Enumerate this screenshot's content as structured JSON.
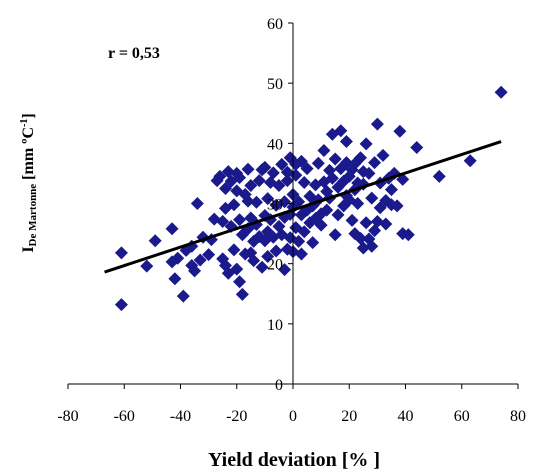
{
  "chart_data": {
    "type": "scatter",
    "title": "",
    "annotation": "r = 0,53",
    "xlabel": "Yield deviation [% ]",
    "ylabel": {
      "main": "I",
      "sub": "De Martonne",
      "unit_start": " [mm  ºC",
      "sup": "-1",
      "unit_end": "]"
    },
    "xlim": [
      -80,
      80
    ],
    "ylim": [
      0,
      60
    ],
    "x_ticks": [
      -80,
      -60,
      -40,
      -20,
      0,
      20,
      40,
      60,
      80
    ],
    "y_ticks": [
      0,
      10,
      20,
      30,
      40,
      50,
      60
    ],
    "grid": false,
    "marker": "diamond",
    "colors": {
      "points": "#1a1a8c",
      "trendline": "#000000",
      "axis": "#000000"
    },
    "trendline": {
      "x": [
        -67,
        74
      ],
      "y": [
        18.6,
        40.3
      ]
    },
    "points": [
      [
        -61,
        21.8
      ],
      [
        -61,
        13.2
      ],
      [
        -52,
        19.6
      ],
      [
        -49,
        23.8
      ],
      [
        -43,
        25.8
      ],
      [
        -43,
        20.3
      ],
      [
        -42,
        17.5
      ],
      [
        -41,
        20.9
      ],
      [
        -39,
        14.6
      ],
      [
        -38,
        22.2
      ],
      [
        -36,
        22.9
      ],
      [
        -36,
        19.7
      ],
      [
        -35,
        18.8
      ],
      [
        -34,
        30.0
      ],
      [
        -33,
        20.6
      ],
      [
        -32,
        24.4
      ],
      [
        -30,
        21.5
      ],
      [
        -29,
        24.0
      ],
      [
        -28,
        27.4
      ],
      [
        -27,
        33.8
      ],
      [
        -26,
        34.5
      ],
      [
        -25,
        20.8
      ],
      [
        -25,
        27.0
      ],
      [
        -24,
        29.2
      ],
      [
        -24,
        32.5
      ],
      [
        -24,
        19.7
      ],
      [
        -23,
        35.3
      ],
      [
        -23,
        18.4
      ],
      [
        -22,
        33.7
      ],
      [
        -22,
        26.2
      ],
      [
        -21,
        22.3
      ],
      [
        -21,
        29.8
      ],
      [
        -20,
        35.0
      ],
      [
        -20,
        32.1
      ],
      [
        -20,
        19.1
      ],
      [
        -19,
        34.3
      ],
      [
        -19,
        27.3
      ],
      [
        -19,
        17.0
      ],
      [
        -18,
        14.9
      ],
      [
        -18,
        24.8
      ],
      [
        -17,
        31.5
      ],
      [
        -17,
        21.6
      ],
      [
        -16,
        35.7
      ],
      [
        -16,
        30.4
      ],
      [
        -16,
        25.8
      ],
      [
        -15,
        27.6
      ],
      [
        -15,
        33.0
      ],
      [
        -15,
        21.8
      ],
      [
        -14,
        23.7
      ],
      [
        -14,
        20.5
      ],
      [
        -13,
        26.5
      ],
      [
        -13,
        30.2
      ],
      [
        -12,
        33.8
      ],
      [
        -12,
        24.5
      ],
      [
        -11,
        19.4
      ],
      [
        -11,
        35.6
      ],
      [
        -10,
        28.0
      ],
      [
        -10,
        23.8
      ],
      [
        -10,
        36.0
      ],
      [
        -9,
        30.8
      ],
      [
        -9,
        21.2
      ],
      [
        -9,
        25.3
      ],
      [
        -8,
        33.5
      ],
      [
        -8,
        27.3
      ],
      [
        -7,
        24.4
      ],
      [
        -7,
        35.1
      ],
      [
        -6,
        29.7
      ],
      [
        -6,
        22.1
      ],
      [
        -5,
        33.0
      ],
      [
        -5,
        26.2
      ],
      [
        -4,
        36.5
      ],
      [
        -4,
        24.8
      ],
      [
        -3,
        30.3
      ],
      [
        -3,
        27.7
      ],
      [
        -3,
        19.0
      ],
      [
        -2,
        35.2
      ],
      [
        -2,
        22.4
      ],
      [
        -2,
        33.8
      ],
      [
        -1,
        37.6
      ],
      [
        -1,
        28.2
      ],
      [
        -1,
        24.3
      ],
      [
        0,
        31.5
      ],
      [
        0,
        22.0
      ],
      [
        0,
        29.4
      ],
      [
        1,
        34.7
      ],
      [
        1,
        26.0
      ],
      [
        1,
        36.5
      ],
      [
        2,
        30.3
      ],
      [
        2,
        23.7
      ],
      [
        3,
        37.0
      ],
      [
        3,
        28.1
      ],
      [
        3,
        21.6
      ],
      [
        4,
        33.5
      ],
      [
        4,
        25.3
      ],
      [
        5,
        35.8
      ],
      [
        5,
        28.9
      ],
      [
        6,
        26.8
      ],
      [
        6,
        31.2
      ],
      [
        7,
        29.6
      ],
      [
        7,
        23.5
      ],
      [
        8,
        33.1
      ],
      [
        8,
        27.5
      ],
      [
        9,
        30.6
      ],
      [
        9,
        36.7
      ],
      [
        10,
        28.3
      ],
      [
        10,
        26.4
      ],
      [
        11,
        38.8
      ],
      [
        11,
        33.6
      ],
      [
        12,
        32.0
      ],
      [
        12,
        28.9
      ],
      [
        13,
        35.5
      ],
      [
        13,
        30.9
      ],
      [
        14,
        34.2
      ],
      [
        14,
        41.5
      ],
      [
        15,
        24.8
      ],
      [
        15,
        37.4
      ],
      [
        16,
        32.7
      ],
      [
        16,
        28.1
      ],
      [
        17,
        35.8
      ],
      [
        17,
        42.1
      ],
      [
        18,
        29.6
      ],
      [
        18,
        33.7
      ],
      [
        19,
        36.8
      ],
      [
        19,
        31.3
      ],
      [
        19,
        40.3
      ],
      [
        20,
        30.6
      ],
      [
        20,
        34.5
      ],
      [
        21,
        35.6
      ],
      [
        21,
        27.2
      ],
      [
        22,
        32.3
      ],
      [
        22,
        25.0
      ],
      [
        22,
        36.6
      ],
      [
        23,
        33.4
      ],
      [
        23,
        30.0
      ],
      [
        24,
        24.2
      ],
      [
        24,
        37.6
      ],
      [
        25,
        22.6
      ],
      [
        25,
        35.3
      ],
      [
        25,
        33.2
      ],
      [
        26,
        39.9
      ],
      [
        26,
        26.8
      ],
      [
        27,
        24.1
      ],
      [
        27,
        35.0
      ],
      [
        28,
        30.9
      ],
      [
        28,
        22.9
      ],
      [
        29,
        25.5
      ],
      [
        29,
        36.8
      ],
      [
        30,
        43.2
      ],
      [
        30,
        27.0
      ],
      [
        31,
        33.4
      ],
      [
        31,
        29.3
      ],
      [
        32,
        38.0
      ],
      [
        33,
        30.5
      ],
      [
        33,
        26.6
      ],
      [
        34,
        34.2
      ],
      [
        35,
        29.8
      ],
      [
        35,
        32.3
      ],
      [
        36,
        35.0
      ],
      [
        37,
        29.6
      ],
      [
        38,
        42.0
      ],
      [
        39,
        34.0
      ],
      [
        39,
        25.0
      ],
      [
        41,
        24.8
      ],
      [
        44,
        39.3
      ],
      [
        52,
        34.5
      ],
      [
        63,
        37.1
      ],
      [
        74,
        48.5
      ]
    ]
  }
}
